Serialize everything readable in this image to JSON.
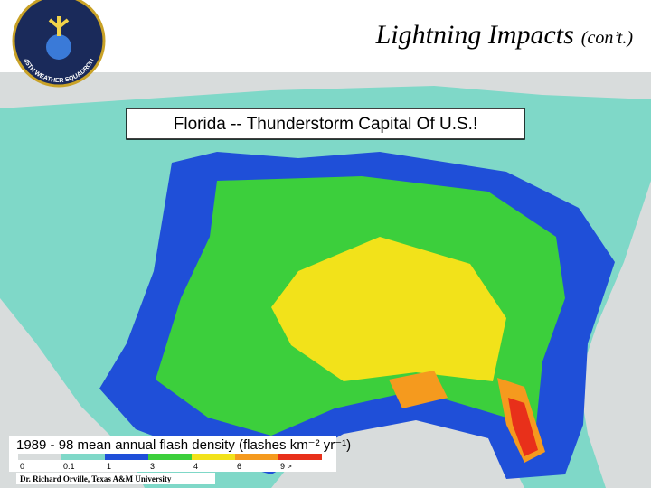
{
  "header": {
    "title": "Lightning Impacts",
    "title_suffix": "(con’t.)"
  },
  "logo": {
    "text": "45TH WEATHER SQUADRON"
  },
  "map": {
    "caption": "Florida -- Thunderstorm Capital Of U.S.!"
  },
  "legend": {
    "title": "1989 - 98 mean annual flash density (flashes km⁻² yr⁻¹)",
    "items": [
      {
        "label": "0",
        "color": "#d8dcdc"
      },
      {
        "label": "0.1",
        "color": "#7fd8c8"
      },
      {
        "label": "1",
        "color": "#1f4fd8"
      },
      {
        "label": "3",
        "color": "#3ccf3c"
      },
      {
        "label": "4",
        "color": "#f2e21a"
      },
      {
        "label": "6",
        "color": "#f59a1e"
      },
      {
        "label": "9 >",
        "color": "#e8301a"
      }
    ]
  },
  "credit": "Dr. Richard Orville, Texas A&M University"
}
